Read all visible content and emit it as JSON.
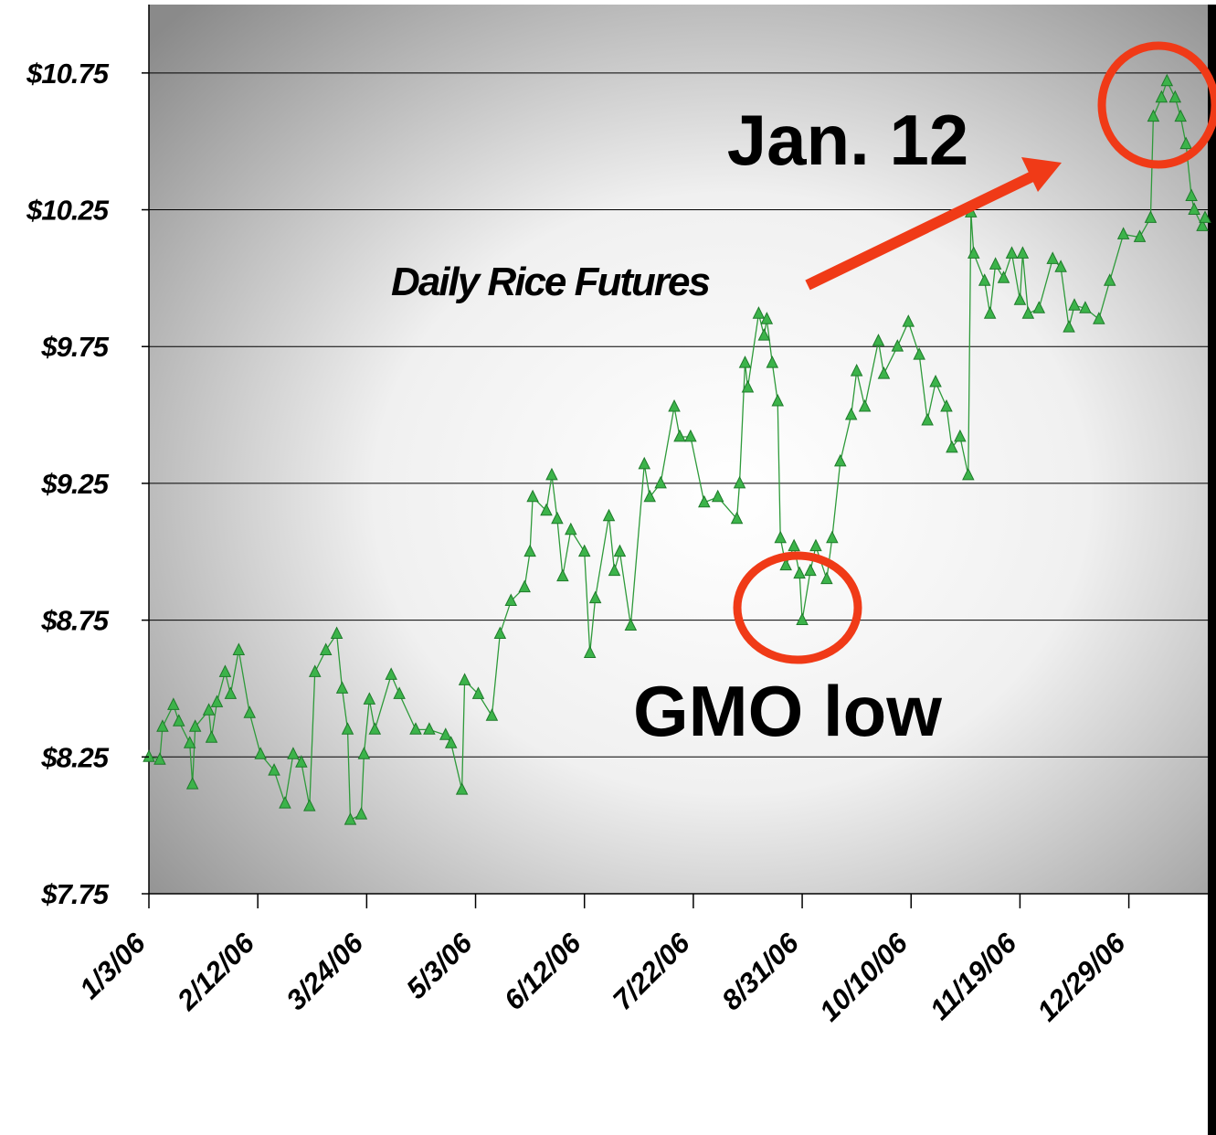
{
  "chart_data": {
    "type": "line",
    "annotations": [
      "Jan. 12",
      "Daily Rice Futures",
      "GMO low"
    ],
    "color": "#3cb34a",
    "x": [
      "1/3/06",
      "1/7/06",
      "1/8/06",
      "1/12/06",
      "1/14/06",
      "1/18/06",
      "1/19/06",
      "1/20/06",
      "1/25/06",
      "1/26/06",
      "1/28/06",
      "1/31/06",
      "2/2/06",
      "2/5/06",
      "2/9/06",
      "2/13/06",
      "2/18/06",
      "2/22/06",
      "2/25/06",
      "2/28/06",
      "3/3/06",
      "3/5/06",
      "3/9/06",
      "3/13/06",
      "3/15/06",
      "3/17/06",
      "3/18/06",
      "3/22/06",
      "3/23/06",
      "3/25/06",
      "3/27/06",
      "4/2/06",
      "4/5/06",
      "4/11/06",
      "4/16/06",
      "4/22/06",
      "4/24/06",
      "4/28/06",
      "4/29/06",
      "5/4/06",
      "5/9/06",
      "5/12/06",
      "5/16/06",
      "5/21/06",
      "5/23/06",
      "5/24/06",
      "5/29/06",
      "5/31/06",
      "6/2/06",
      "6/4/06",
      "6/7/06",
      "6/12/06",
      "6/14/06",
      "6/16/06",
      "6/21/06",
      "6/23/06",
      "6/25/06",
      "6/29/06",
      "7/4/06",
      "7/6/06",
      "7/10/06",
      "7/15/06",
      "7/17/06",
      "7/21/06",
      "7/26/06",
      "7/31/06",
      "8/7/06",
      "8/8/06",
      "8/10/06",
      "8/11/06",
      "8/15/06",
      "8/17/06",
      "8/18/06",
      "8/20/06",
      "8/22/06",
      "8/23/06",
      "8/25/06",
      "8/28/06",
      "8/30/06",
      "8/31/06",
      "9/3/06",
      "9/5/06",
      "9/9/06",
      "9/11/06",
      "9/14/06",
      "9/18/06",
      "9/20/06",
      "9/23/06",
      "9/28/06",
      "9/30/06",
      "10/5/06",
      "10/9/06",
      "10/13/06",
      "10/16/06",
      "10/19/06",
      "10/23/06",
      "10/25/06",
      "10/28/06",
      "10/31/06",
      "11/1/06",
      "11/2/06",
      "11/6/06",
      "11/8/06",
      "11/10/06",
      "11/13/06",
      "11/16/06",
      "11/19/06",
      "11/20/06",
      "11/22/06",
      "11/26/06",
      "12/1/06",
      "12/4/06",
      "12/7/06",
      "12/9/06",
      "12/13/06",
      "12/18/06",
      "12/22/06",
      "12/27/06",
      "1/2/07",
      "1/6/07",
      "1/7/07",
      "1/10/07",
      "1/12/07",
      "1/15/07",
      "1/17/07",
      "1/19/07",
      "1/21/07",
      "1/22/07",
      "1/25/07",
      "1/26/07"
    ],
    "values": [
      8.25,
      8.24,
      8.36,
      8.44,
      8.38,
      8.3,
      8.15,
      8.36,
      8.42,
      8.32,
      8.45,
      8.56,
      8.48,
      8.64,
      8.41,
      8.26,
      8.2,
      8.08,
      8.26,
      8.23,
      8.07,
      8.56,
      8.64,
      8.7,
      8.5,
      8.35,
      8.02,
      8.04,
      8.26,
      8.46,
      8.35,
      8.55,
      8.48,
      8.35,
      8.35,
      8.33,
      8.3,
      8.13,
      8.53,
      8.48,
      8.4,
      8.7,
      8.82,
      8.87,
      9.0,
      9.2,
      9.15,
      9.28,
      9.12,
      8.91,
      9.08,
      9.0,
      8.63,
      8.83,
      9.13,
      8.93,
      9.0,
      8.73,
      9.32,
      9.2,
      9.25,
      9.53,
      9.42,
      9.42,
      9.18,
      9.2,
      9.12,
      9.25,
      9.69,
      9.6,
      9.87,
      9.79,
      9.85,
      9.69,
      9.55,
      9.05,
      8.95,
      9.02,
      8.92,
      8.75,
      8.93,
      9.02,
      8.9,
      9.05,
      9.33,
      9.5,
      9.66,
      9.53,
      9.77,
      9.65,
      9.75,
      9.84,
      9.72,
      9.48,
      9.62,
      9.53,
      9.38,
      9.42,
      9.28,
      10.24,
      10.09,
      9.99,
      9.87,
      10.05,
      10.0,
      10.09,
      9.92,
      10.09,
      9.87,
      9.89,
      10.07,
      10.04,
      9.82,
      9.9,
      9.89,
      9.85,
      9.99,
      10.16,
      10.15,
      10.22,
      10.59,
      10.66,
      10.72,
      10.66,
      10.59,
      10.49,
      10.3,
      10.25,
      10.19,
      10.22
    ],
    "xlim": [
      "1/3/06",
      "1/27/07"
    ],
    "xticks": [
      "1/3/06",
      "2/12/06",
      "3/24/06",
      "5/3/06",
      "6/12/06",
      "7/22/06",
      "8/31/06",
      "10/10/06",
      "11/19/06",
      "12/29/06"
    ],
    "ylim": [
      7.75,
      11
    ],
    "yticks": [
      {
        "value": 7.75,
        "label": "$7.75"
      },
      {
        "value": 8.25,
        "label": "$8.25"
      },
      {
        "value": 8.75,
        "label": "$8.75"
      },
      {
        "value": 9.25,
        "label": "$9.25"
      },
      {
        "value": 9.75,
        "label": "$9.75"
      },
      {
        "value": 10.25,
        "label": "$10.25"
      },
      {
        "value": 10.75,
        "label": "$10.75"
      }
    ],
    "grid": true
  }
}
